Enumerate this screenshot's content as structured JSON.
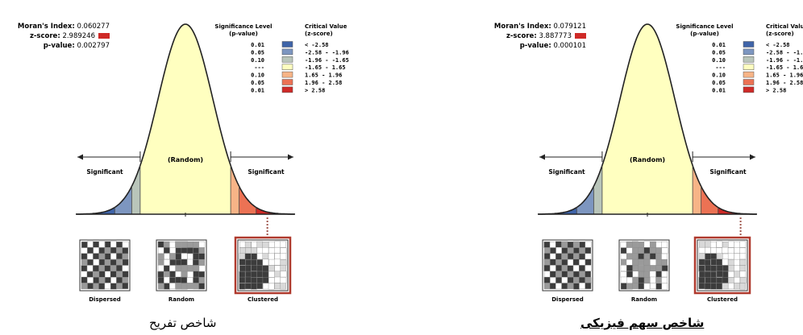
{
  "panels": [
    {
      "id": "left",
      "stats": {
        "moran_label": "Moran's Index:",
        "moran_value": "0.060277",
        "z_label": "z-score:",
        "z_value": "2.989246",
        "p_label": "p-value:",
        "p_value": "0.002797"
      },
      "caption": "شاخص تفریح",
      "caption_bold": false
    },
    {
      "id": "right",
      "stats": {
        "moran_label": "Moran's Index:",
        "moran_value": "0.079121",
        "z_label": "z-score:",
        "z_value": "3.887773",
        "p_label": "p-value:",
        "p_value": "0.000101"
      },
      "caption": "شاخص سهم فیزیکی",
      "caption_bold": true
    }
  ],
  "legend": {
    "sig_header": [
      "Significance Level",
      "(p-value)"
    ],
    "crit_header": [
      "Critical Value",
      "(z-score)"
    ],
    "rows": [
      {
        "p": "0.01",
        "color": "#3f64a8",
        "range": "< -2.58"
      },
      {
        "p": "0.05",
        "color": "#7d96c0",
        "range": "-2.58 - -1.96"
      },
      {
        "p": "0.10",
        "color": "#b9c5ba",
        "range": "-1.96 - -1.65"
      },
      {
        "p": "---",
        "color": "#ffffc0",
        "range": "-1.65 - 1.65"
      },
      {
        "p": "0.10",
        "color": "#f7b487",
        "range": "1.65 - 1.96"
      },
      {
        "p": "0.05",
        "color": "#ec7254",
        "range": "1.96 - 2.58"
      },
      {
        "p": "0.01",
        "color": "#cf2a27",
        "range": "> 2.58"
      }
    ]
  },
  "curve_labels": {
    "random": "(Random)",
    "significant_left": "Significant",
    "significant_right": "Significant"
  },
  "thumbnails": [
    {
      "label": "Dispersed",
      "highlight": false
    },
    {
      "label": "Random",
      "highlight": false
    },
    {
      "label": "Clustered",
      "highlight": true
    }
  ],
  "chart_data": [
    {
      "type": "area",
      "z_score": 2.989246,
      "moran_index": 0.060277,
      "p_value": 0.002797,
      "critical_values": [
        -2.58,
        -1.96,
        -1.65,
        1.65,
        1.96,
        2.58
      ],
      "result_class": "> 2.58"
    },
    {
      "type": "area",
      "z_score": 3.887773,
      "moran_index": 0.079121,
      "p_value": 0.000101,
      "critical_values": [
        -2.58,
        -1.96,
        -1.65,
        1.65,
        1.96,
        2.58
      ],
      "result_class": "> 2.58"
    }
  ],
  "colors": {
    "highlight_frame": "#b03a2e",
    "z_marker": "#cf2a27",
    "leader_line": "#a0574e",
    "caption_underline": "#000000"
  }
}
